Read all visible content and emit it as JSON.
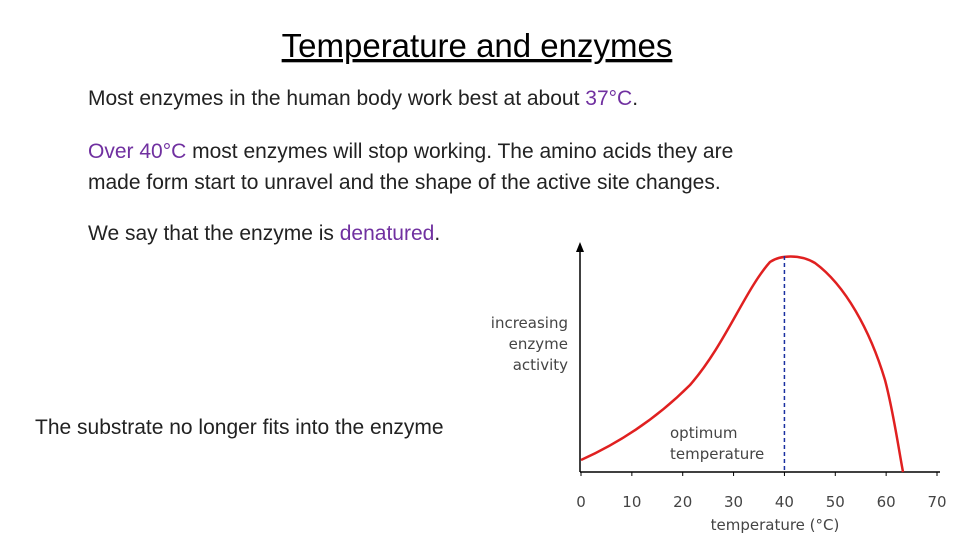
{
  "slide": {
    "title": "Temperature and enzymes",
    "paragraphs": [
      {
        "before": "Most enzymes in the human body work best at about ",
        "highlight": "37°C",
        "after": "."
      },
      {
        "highlight": "Over 40°C",
        "after_lines": [
          " most enzymes will stop working.  The amino acids they are",
          "made form start to unravel and the shape of the active site changes."
        ]
      },
      {
        "before": "We say that the enzyme is ",
        "highlight": "denatured",
        "after": "."
      }
    ],
    "caption": "The substrate no longer fits into the enzyme"
  },
  "chart": {
    "xlabel": "temperature (°C)",
    "ylabel": [
      "increasing",
      "enzyme",
      "activity"
    ],
    "annotation": [
      "optimum",
      "temperature"
    ],
    "xlim": [
      0,
      70
    ],
    "xticks": [
      0,
      10,
      20,
      30,
      40,
      50,
      60,
      70
    ],
    "optimum_tick_index": 4
  }
}
